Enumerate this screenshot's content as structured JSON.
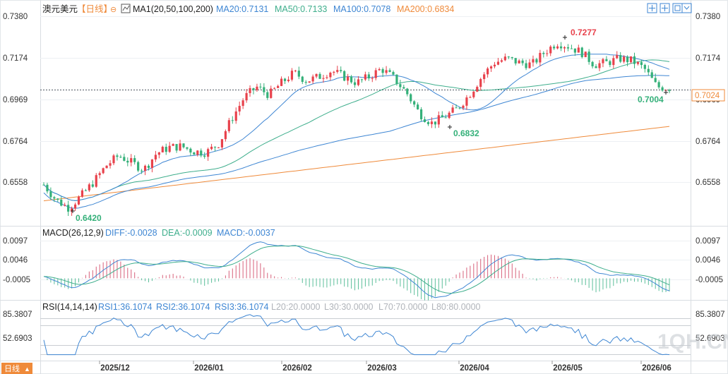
{
  "header": {
    "symbol": "澳元美元",
    "period": "【日线】",
    "ma_label": "MA1(20,50,100,200)",
    "ma20": "MA20:0.7131",
    "ma50": "MA50:0.7133",
    "ma100": "MA100:0.7078",
    "ma200": "MA200:0.6834"
  },
  "macd_header": {
    "name": "MACD(26,12,9)",
    "diff": "DIFF:-0.0028",
    "dea": "DEA:-0.0009",
    "macd": "MACD:-0.0037"
  },
  "rsi_header": {
    "name": "RSI(14,14,14)",
    "rsi1": "RSI1:36.1074",
    "rsi2": "RSI2:36.1074",
    "rsi3": "RSI3:36.1074",
    "l20": "L20:20.0000",
    "l30": "L30:30.0000",
    "l70": "L70:70.0000",
    "l80": "L80:80.0000"
  },
  "price_axis": {
    "ticks": [
      "0.7380",
      "0.7174",
      "0.6969",
      "0.6764",
      "0.6558"
    ],
    "last_price": "0.7024"
  },
  "macd_axis": {
    "ticks": [
      "0.0097",
      "0.0046",
      "-0.0005"
    ]
  },
  "rsi_axis": {
    "ticks": [
      "85.3807",
      "52.6903"
    ]
  },
  "annotations": {
    "low1": "0.6420",
    "high": "0.7277",
    "low2": "0.6832",
    "last_low": "0.7004"
  },
  "bottom_badge": "日线",
  "watermark": "1QH.CN",
  "colors": {
    "up": "#e8424c",
    "down": "#34b079",
    "ma20": "#3e86d3",
    "ma50": "#3eae8c",
    "ma100": "#3e86d3",
    "ma200": "#ef8a3a"
  },
  "chart_data": {
    "type": "candlestick",
    "x_axis": {
      "labels": [
        "2025/12",
        "2026/01",
        "2026/02",
        "2026/03",
        "2026/04",
        "2026/05",
        "2026/06"
      ]
    },
    "price": {
      "ylim": [
        0.6558,
        0.738
      ],
      "series": [
        {
          "x": "2025-11",
          "y": 0.6545
        },
        {
          "x": "2025-11",
          "y": 0.6468
        },
        {
          "x": "2025-11",
          "y": 0.643
        },
        {
          "x": "2025-11",
          "y": 0.649
        },
        {
          "x": "2025-12",
          "y": 0.656
        },
        {
          "x": "2025-12",
          "y": 0.664
        },
        {
          "x": "2025-12",
          "y": 0.669
        },
        {
          "x": "2025-12",
          "y": 0.6655
        },
        {
          "x": "2025-12",
          "y": 0.662
        },
        {
          "x": "2026-01",
          "y": 0.67
        },
        {
          "x": "2026-01",
          "y": 0.673
        },
        {
          "x": "2026-01",
          "y": 0.6735
        },
        {
          "x": "2026-01",
          "y": 0.671
        },
        {
          "x": "2026-01",
          "y": 0.6705
        },
        {
          "x": "2026-01",
          "y": 0.675
        },
        {
          "x": "2026-01",
          "y": 0.687
        },
        {
          "x": "2026-01",
          "y": 0.6975
        },
        {
          "x": "2026-01",
          "y": 0.703
        },
        {
          "x": "2026-02",
          "y": 0.699
        },
        {
          "x": "2026-02",
          "y": 0.705
        },
        {
          "x": "2026-02",
          "y": 0.71
        },
        {
          "x": "2026-02",
          "y": 0.706
        },
        {
          "x": "2026-02",
          "y": 0.708
        },
        {
          "x": "2026-02",
          "y": 0.711
        },
        {
          "x": "2026-03",
          "y": 0.708
        },
        {
          "x": "2026-03",
          "y": 0.705
        },
        {
          "x": "2026-03",
          "y": 0.708
        },
        {
          "x": "2026-03",
          "y": 0.712
        },
        {
          "x": "2026-03",
          "y": 0.707
        },
        {
          "x": "2026-03",
          "y": 0.7
        },
        {
          "x": "2026-03",
          "y": 0.69
        },
        {
          "x": "2026-03",
          "y": 0.685
        },
        {
          "x": "2026-04",
          "y": 0.688
        },
        {
          "x": "2026-04",
          "y": 0.692
        },
        {
          "x": "2026-04",
          "y": 0.699
        },
        {
          "x": "2026-04",
          "y": 0.708
        },
        {
          "x": "2026-04",
          "y": 0.715
        },
        {
          "x": "2026-04",
          "y": 0.717
        },
        {
          "x": "2026-04",
          "y": 0.715
        },
        {
          "x": "2026-05",
          "y": 0.714
        },
        {
          "x": "2026-05",
          "y": 0.72
        },
        {
          "x": "2026-05",
          "y": 0.725
        },
        {
          "x": "2026-05",
          "y": 0.723
        },
        {
          "x": "2026-05",
          "y": 0.72
        },
        {
          "x": "2026-05",
          "y": 0.714
        },
        {
          "x": "2026-05",
          "y": 0.715
        },
        {
          "x": "2026-05",
          "y": 0.717
        },
        {
          "x": "2026-06",
          "y": 0.716
        },
        {
          "x": "2026-06",
          "y": 0.712
        },
        {
          "x": "2026-06",
          "y": 0.703
        },
        {
          "x": "2026-06",
          "y": 0.7024
        }
      ],
      "ma": [
        "MA20",
        "MA50",
        "MA100",
        "MA200"
      ],
      "annotations": [
        {
          "label": "0.6420",
          "kind": "low"
        },
        {
          "label": "0.7277",
          "kind": "high"
        },
        {
          "label": "0.6832",
          "kind": "low"
        },
        {
          "label": "0.7004",
          "kind": "low"
        }
      ]
    },
    "macd": {
      "ylim": [
        -0.0005,
        0.0097
      ],
      "series": [
        "DIFF",
        "DEA",
        "MACD"
      ]
    },
    "rsi": {
      "ylim": [
        52.6903,
        85.3807
      ],
      "series": [
        "RSI1",
        "RSI2",
        "RSI3"
      ]
    }
  }
}
